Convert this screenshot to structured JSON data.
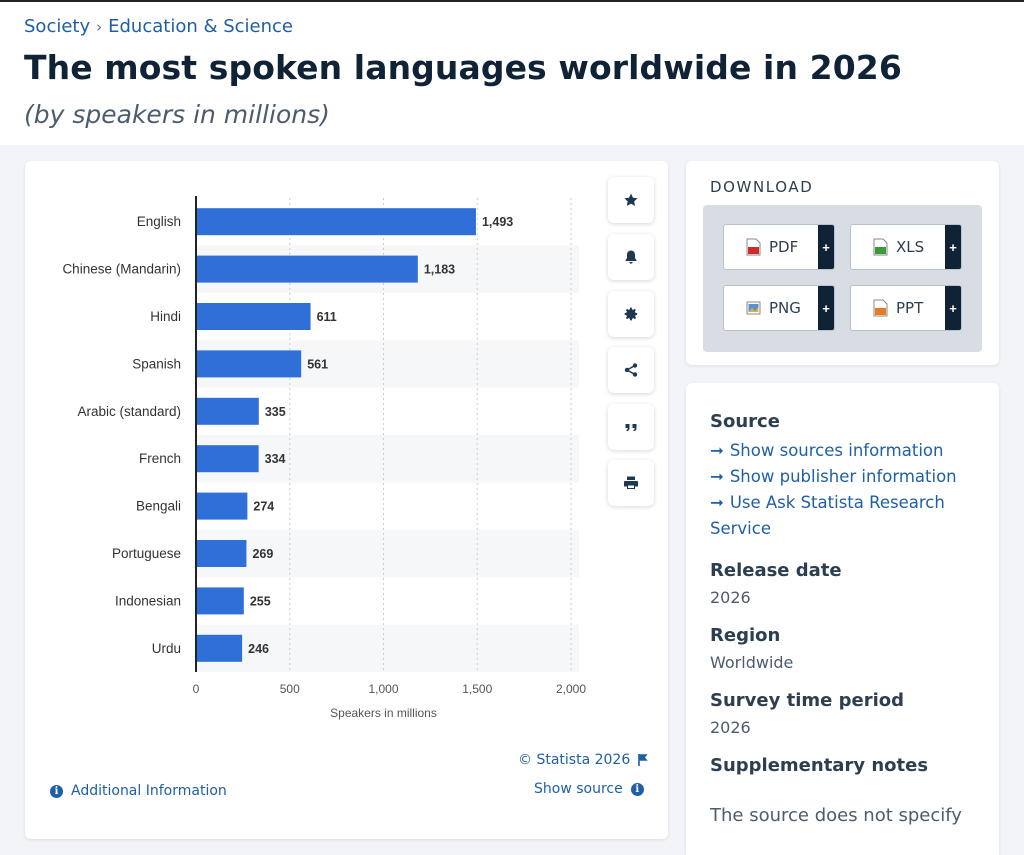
{
  "breadcrumb": {
    "item1": "Society",
    "separator": "›",
    "item2": "Education & Science"
  },
  "page": {
    "title": "The most spoken languages worldwide in 2026",
    "subtitle": "(by speakers in millions)"
  },
  "chart_data": {
    "type": "bar",
    "orientation": "horizontal",
    "categories": [
      "English",
      "Chinese (Mandarin)",
      "Hindi",
      "Spanish",
      "Arabic (standard)",
      "French",
      "Bengali",
      "Portuguese",
      "Indonesian",
      "Urdu"
    ],
    "values": [
      1493,
      1183,
      611,
      561,
      335,
      334,
      274,
      269,
      255,
      246
    ],
    "value_labels": [
      "1,493",
      "1,183",
      "611",
      "561",
      "335",
      "334",
      "274",
      "269",
      "255",
      "246"
    ],
    "xlabel": "Speakers in millions",
    "xlim": [
      0,
      2000
    ],
    "xticks": [
      0,
      500,
      1000,
      1500,
      2000
    ],
    "xtick_labels": [
      "0",
      "500",
      "1,000",
      "1,500",
      "2,000"
    ],
    "grid": true,
    "bar_color": "#2f6fd8"
  },
  "chart_footer": {
    "credit": "© Statista 2026",
    "show_source": "Show source",
    "additional_info": "Additional Information"
  },
  "toolbar": [
    "star-icon",
    "bell-icon",
    "gear-icon",
    "share-icon",
    "quote-icon",
    "print-icon"
  ],
  "download": {
    "title": "DOWNLOAD",
    "buttons": [
      {
        "label": "PDF",
        "icon": "pdf-file-icon",
        "plus": "+"
      },
      {
        "label": "XLS",
        "icon": "xls-file-icon",
        "plus": "+"
      },
      {
        "label": "PNG",
        "icon": "png-file-icon",
        "plus": "+"
      },
      {
        "label": "PPT",
        "icon": "ppt-file-icon",
        "plus": "+"
      }
    ]
  },
  "meta": {
    "source_heading": "Source",
    "links": [
      "Show sources information",
      "Show publisher information",
      "Use Ask Statista Research Service"
    ],
    "release_heading": "Release date",
    "release_value": "2026",
    "region_heading": "Region",
    "region_value": "Worldwide",
    "survey_heading": "Survey time period",
    "survey_value": "2026",
    "notes_heading": "Supplementary notes",
    "notes_text": "The source does not specify"
  },
  "colors": {
    "accent": "#1f5fa6",
    "bar": "#2f6fd8",
    "title": "#0f2236",
    "plus_bg": "#0f2236"
  }
}
